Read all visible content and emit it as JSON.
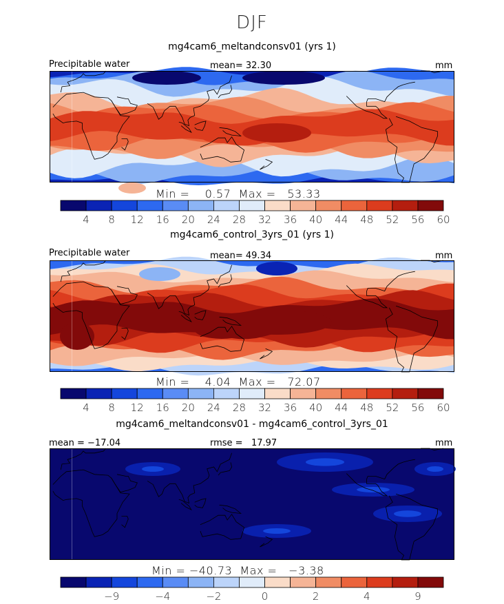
{
  "page": {
    "title": "DJF"
  },
  "panels": [
    {
      "title": "mg4cam6_meltandconsv01 (yrs 1)",
      "variable": "Precipitable water",
      "mean_text": "mean=  32.30",
      "units": "mm",
      "minmax_text": "Min =    0.57  Max =   53.33",
      "colorbar_ticks": [
        "4",
        "8",
        "12",
        "16",
        "20",
        "24",
        "28",
        "32",
        "36",
        "40",
        "44",
        "48",
        "52",
        "56",
        "60"
      ]
    },
    {
      "title": "mg4cam6_control_3yrs_01 (yrs 1)",
      "variable": "Precipitable water",
      "mean_text": "mean=  49.34",
      "units": "mm",
      "minmax_text": "Min =    4.04  Max =   72.07",
      "colorbar_ticks": [
        "4",
        "8",
        "12",
        "16",
        "20",
        "24",
        "28",
        "32",
        "36",
        "40",
        "44",
        "48",
        "52",
        "56",
        "60"
      ]
    },
    {
      "title": "mg4cam6_meltandconsv01 - mg4cam6_control_3yrs_01",
      "mean_text": "mean = −17.04",
      "rmse_text": "rmse =   17.97",
      "units": "mm",
      "minmax_text": "Min = −40.73  Max =   −3.38",
      "colorbar_ticks": [
        "−9",
        "−4",
        "−2",
        "0",
        "2",
        "4",
        "9"
      ]
    }
  ],
  "colors": {
    "scale": [
      "#08086e",
      "#0a23b4",
      "#1446dc",
      "#2d69f0",
      "#5a8cf5",
      "#8cb4f5",
      "#bcd4fa",
      "#e0ecfa",
      "#fadcc8",
      "#f5b496",
      "#f08c64",
      "#eb643c",
      "#dc3c1e",
      "#b41e0f",
      "#820a0a"
    ]
  },
  "chart_data": [
    {
      "type": "heatmap",
      "title": "mg4cam6_meltandconsv01 (yrs 1)",
      "variable": "Precipitable water",
      "units": "mm",
      "mean": 32.3,
      "min": 0.57,
      "max": 53.33,
      "levels": [
        4,
        8,
        12,
        16,
        20,
        24,
        28,
        32,
        36,
        40,
        44,
        48,
        52,
        56,
        60
      ]
    },
    {
      "type": "heatmap",
      "title": "mg4cam6_control_3yrs_01 (yrs 1)",
      "variable": "Precipitable water",
      "units": "mm",
      "mean": 49.34,
      "min": 4.04,
      "max": 72.07,
      "levels": [
        4,
        8,
        12,
        16,
        20,
        24,
        28,
        32,
        36,
        40,
        44,
        48,
        52,
        56,
        60
      ]
    },
    {
      "type": "heatmap",
      "title": "mg4cam6_meltandconsv01 - mg4cam6_control_3yrs_01",
      "units": "mm",
      "mean": -17.04,
      "rmse": 17.97,
      "min": -40.73,
      "max": -3.38,
      "levels": [
        -9,
        -4,
        -2,
        0,
        2,
        4,
        9
      ]
    }
  ]
}
